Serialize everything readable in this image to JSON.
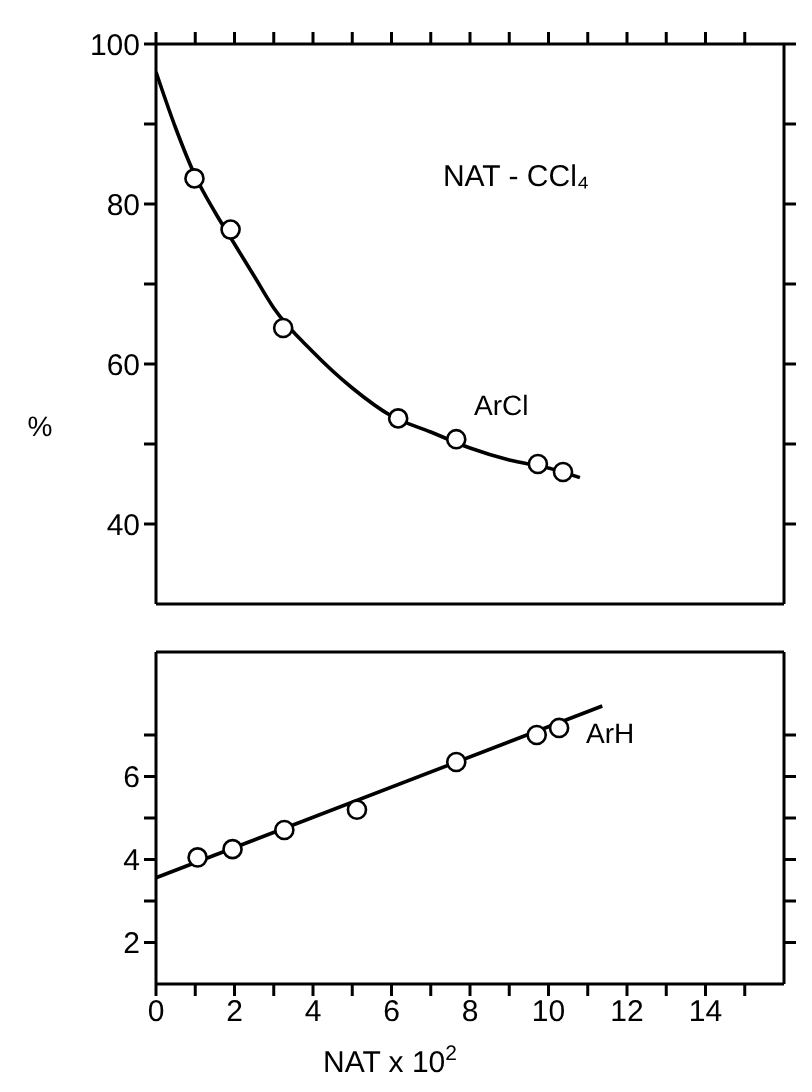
{
  "chart_data": [
    {
      "type": "scatter",
      "ylabel": "%",
      "annotations": [
        "NAT - CCl₄"
      ],
      "xlim": [
        0,
        16
      ],
      "xticks": [
        0,
        {
          "value": 1,
          "label": null
        },
        2,
        {
          "value": 3,
          "label": null
        },
        4,
        {
          "value": 5,
          "label": null
        },
        6,
        {
          "value": 7,
          "label": null
        },
        8,
        {
          "value": 9,
          "label": null
        },
        10,
        {
          "value": 11,
          "label": null
        },
        12,
        {
          "value": 13,
          "label": null
        },
        14,
        {
          "value": 15,
          "label": null
        }
      ],
      "ylim": [
        30,
        100
      ],
      "yticks": [
        40,
        {
          "value": 50,
          "label": null
        },
        60,
        {
          "value": 70,
          "label": null
        },
        80,
        {
          "value": 90,
          "label": null
        },
        100
      ],
      "tick_labels": "y",
      "marker": "circle",
      "series": [
        {
          "name": "ArCl",
          "color": "#000000",
          "x": [
            0.98,
            1.9,
            3.24,
            6.17,
            7.65,
            9.73,
            10.37
          ],
          "values": [
            83.2,
            76.8,
            64.5,
            53.2,
            50.6,
            47.5,
            46.5
          ]
        },
        {
          "type": "line",
          "marker": "none",
          "color": "#000000",
          "x": [
            0,
            0.5,
            1,
            1.5,
            2,
            2.5,
            3,
            4,
            5,
            6,
            7,
            8,
            9,
            10,
            10.8
          ],
          "values": [
            96.5,
            89.5,
            83.5,
            79,
            75,
            71,
            67,
            61.5,
            57,
            53.5,
            51.5,
            49.5,
            48,
            47,
            45.8
          ]
        }
      ]
    },
    {
      "type": "scatter",
      "xlabel": "NAT x 10$^{2}$",
      "xlim": [
        0,
        16
      ],
      "xticks": [
        0,
        {
          "value": 1,
          "label": null
        },
        2,
        {
          "value": 3,
          "label": null
        },
        4,
        {
          "value": 5,
          "label": null
        },
        6,
        {
          "value": 7,
          "label": null
        },
        8,
        {
          "value": 9,
          "label": null
        },
        10,
        {
          "value": 11,
          "label": null
        },
        12,
        {
          "value": 13,
          "label": null
        },
        14,
        {
          "value": 15,
          "label": null
        }
      ],
      "ylim": [
        1,
        9
      ],
      "yticks": [
        2,
        {
          "value": 3,
          "label": null
        },
        4,
        {
          "value": 5,
          "label": null
        },
        6,
        {
          "value": 7,
          "label": null
        }
      ],
      "marker": "circle",
      "series": [
        {
          "name": "ArH",
          "color": "#000000",
          "x": [
            1.06,
            1.95,
            3.27,
            5.12,
            7.65,
            9.7,
            10.27
          ],
          "values": [
            4.05,
            4.25,
            4.71,
            5.2,
            6.35,
            7.0,
            7.17
          ]
        },
        {
          "type": "line",
          "marker": "none",
          "color": "#000000",
          "x": [
            0,
            11.37
          ],
          "values": [
            3.56,
            7.7
          ]
        }
      ]
    }
  ]
}
